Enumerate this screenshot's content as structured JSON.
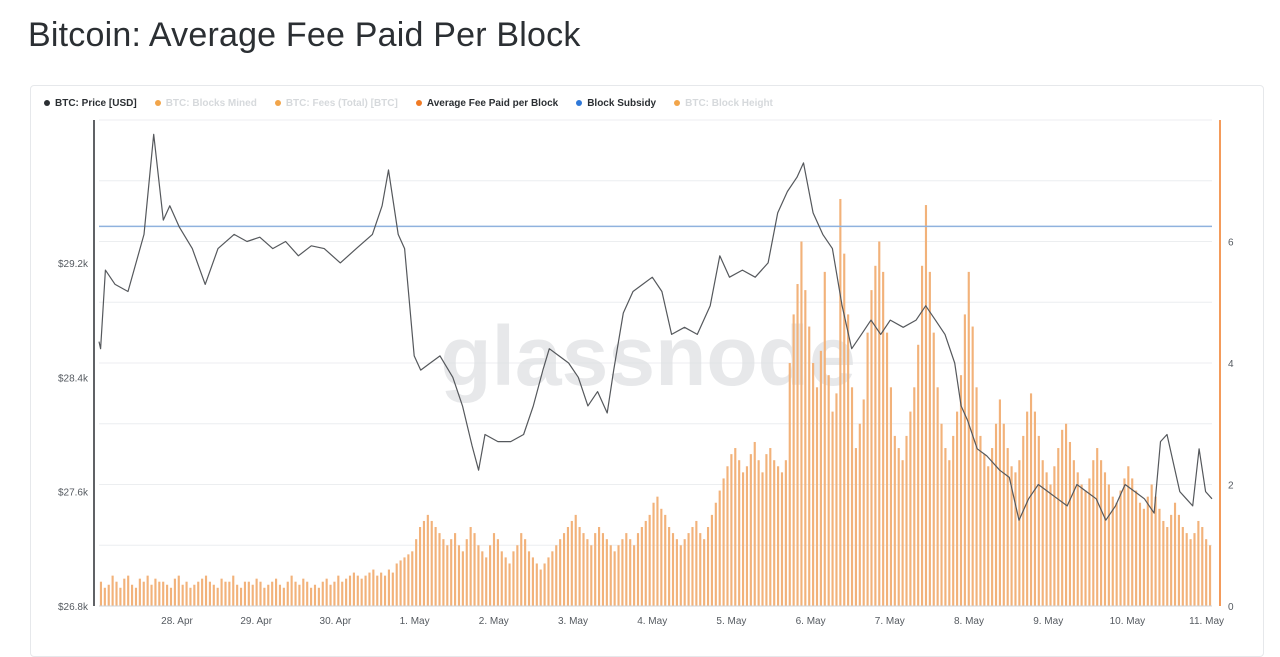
{
  "page": {
    "title": "Bitcoin: Average Fee Paid Per Block"
  },
  "legend": [
    {
      "label": "BTC: Price [USD]",
      "color": "#2b2f33",
      "active": true
    },
    {
      "label": "BTC: Blocks Mined",
      "color": "#f2a54a",
      "active": false
    },
    {
      "label": "BTC: Fees (Total) [BTC]",
      "color": "#f2a54a",
      "active": false
    },
    {
      "label": "Average Fee Paid per Block",
      "color": "#f07a24",
      "active": true
    },
    {
      "label": "Block Subsidy",
      "color": "#2f78d8",
      "active": true
    },
    {
      "label": "BTC: Block Height",
      "color": "#f2a54a",
      "active": false
    }
  ],
  "watermark": "glassnode",
  "chart_data": {
    "type": "line+bar",
    "x_axis": {
      "ticks": [
        "28. Apr",
        "29. Apr",
        "30. Apr",
        "1. May",
        "2. May",
        "3. May",
        "4. May",
        "5. May",
        "6. May",
        "7. May",
        "8. May",
        "9. May",
        "10. May",
        "11. May"
      ]
    },
    "y_left": {
      "ticks": [
        "$26.8k",
        "$27.6k",
        "$28.4k",
        "$29.2k"
      ],
      "range": [
        26800,
        30200
      ],
      "unit": "USD"
    },
    "y_right": {
      "ticks": [
        "0",
        "2",
        "4",
        "6"
      ],
      "range": [
        0,
        8
      ],
      "unit": "BTC"
    },
    "series": [
      {
        "name": "BTC: Price [USD]",
        "type": "line",
        "axis": "left",
        "color": "#55585c",
        "points": [
          [
            0,
            28650
          ],
          [
            0.05,
            28600
          ],
          [
            0.2,
            29150
          ],
          [
            0.5,
            29050
          ],
          [
            0.9,
            29000
          ],
          [
            1.4,
            29400
          ],
          [
            1.7,
            30100
          ],
          [
            2,
            29500
          ],
          [
            2.2,
            29600
          ],
          [
            2.5,
            29450
          ],
          [
            2.9,
            29300
          ],
          [
            3.3,
            29050
          ],
          [
            3.7,
            29300
          ],
          [
            4.2,
            29400
          ],
          [
            4.6,
            29350
          ],
          [
            5,
            29380
          ],
          [
            5.4,
            29300
          ],
          [
            5.8,
            29350
          ],
          [
            6.2,
            29250
          ],
          [
            6.6,
            29320
          ],
          [
            7,
            29300
          ],
          [
            7.5,
            29200
          ],
          [
            8,
            29300
          ],
          [
            8.5,
            29400
          ],
          [
            8.8,
            29600
          ],
          [
            9,
            29850
          ],
          [
            9.3,
            29400
          ],
          [
            9.5,
            29300
          ],
          [
            9.8,
            28550
          ],
          [
            10,
            28450
          ],
          [
            10.3,
            28500
          ],
          [
            10.6,
            28550
          ],
          [
            11,
            28400
          ],
          [
            11.3,
            28200
          ],
          [
            11.6,
            27920
          ],
          [
            11.8,
            27750
          ],
          [
            12,
            28000
          ],
          [
            12.4,
            27950
          ],
          [
            12.8,
            27950
          ],
          [
            13.2,
            28000
          ],
          [
            13.5,
            28200
          ],
          [
            13.8,
            28450
          ],
          [
            14,
            28600
          ],
          [
            14.3,
            28550
          ],
          [
            14.6,
            28500
          ],
          [
            14.9,
            28400
          ],
          [
            15.2,
            28200
          ],
          [
            15.5,
            28300
          ],
          [
            15.8,
            28150
          ],
          [
            16,
            28450
          ],
          [
            16.3,
            28850
          ],
          [
            16.6,
            29000
          ],
          [
            16.9,
            29050
          ],
          [
            17.2,
            29100
          ],
          [
            17.5,
            29000
          ],
          [
            17.8,
            28700
          ],
          [
            18.2,
            28750
          ],
          [
            18.6,
            28700
          ],
          [
            19,
            28900
          ],
          [
            19.3,
            29250
          ],
          [
            19.6,
            29100
          ],
          [
            20,
            29150
          ],
          [
            20.4,
            29100
          ],
          [
            20.8,
            29200
          ],
          [
            21.1,
            29550
          ],
          [
            21.4,
            29700
          ],
          [
            21.7,
            29800
          ],
          [
            21.9,
            29900
          ],
          [
            22.2,
            29550
          ],
          [
            22.5,
            29400
          ],
          [
            22.8,
            29300
          ],
          [
            23.1,
            28900
          ],
          [
            23.4,
            28600
          ],
          [
            23.7,
            28700
          ],
          [
            24,
            28800
          ],
          [
            24.3,
            28700
          ],
          [
            24.6,
            28800
          ],
          [
            25,
            28750
          ],
          [
            25.4,
            28800
          ],
          [
            25.7,
            28900
          ],
          [
            26,
            28800
          ],
          [
            26.3,
            28700
          ],
          [
            26.6,
            28500
          ],
          [
            26.8,
            28200
          ],
          [
            27,
            28100
          ],
          [
            27.3,
            27900
          ],
          [
            27.6,
            27850
          ],
          [
            28,
            27750
          ],
          [
            28.3,
            27700
          ],
          [
            28.6,
            27400
          ],
          [
            28.9,
            27550
          ],
          [
            29.2,
            27650
          ],
          [
            29.5,
            27600
          ],
          [
            29.8,
            27550
          ],
          [
            30.1,
            27500
          ],
          [
            30.4,
            27650
          ],
          [
            30.7,
            27600
          ],
          [
            31,
            27550
          ],
          [
            31.3,
            27400
          ],
          [
            31.6,
            27500
          ],
          [
            31.9,
            27650
          ],
          [
            32.2,
            27600
          ],
          [
            32.5,
            27550
          ],
          [
            32.8,
            27450
          ],
          [
            33,
            27950
          ],
          [
            33.2,
            28000
          ],
          [
            33.4,
            27800
          ],
          [
            33.6,
            27600
          ],
          [
            33.8,
            27550
          ],
          [
            34,
            27500
          ],
          [
            34.2,
            27900
          ],
          [
            34.4,
            27600
          ],
          [
            34.6,
            27550
          ]
        ]
      },
      {
        "name": "Block Subsidy",
        "type": "line",
        "axis": "right",
        "color": "#8fb2de",
        "value": 6.25
      },
      {
        "name": "Average Fee Paid per Block",
        "type": "bar",
        "axis": "right",
        "color": "#f2b27a",
        "x_range": [
          0,
          34.6
        ],
        "values": [
          0.4,
          0.3,
          0.35,
          0.5,
          0.4,
          0.3,
          0.45,
          0.5,
          0.35,
          0.3,
          0.45,
          0.4,
          0.5,
          0.35,
          0.45,
          0.4,
          0.4,
          0.35,
          0.3,
          0.45,
          0.5,
          0.35,
          0.4,
          0.3,
          0.35,
          0.4,
          0.45,
          0.5,
          0.4,
          0.35,
          0.3,
          0.45,
          0.4,
          0.4,
          0.5,
          0.35,
          0.3,
          0.4,
          0.4,
          0.35,
          0.45,
          0.4,
          0.3,
          0.35,
          0.4,
          0.45,
          0.35,
          0.3,
          0.4,
          0.5,
          0.4,
          0.35,
          0.45,
          0.4,
          0.3,
          0.35,
          0.3,
          0.4,
          0.45,
          0.35,
          0.4,
          0.5,
          0.4,
          0.45,
          0.5,
          0.55,
          0.5,
          0.45,
          0.5,
          0.55,
          0.6,
          0.5,
          0.55,
          0.5,
          0.6,
          0.55,
          0.7,
          0.75,
          0.8,
          0.85,
          0.9,
          1.1,
          1.3,
          1.4,
          1.5,
          1.4,
          1.3,
          1.2,
          1.1,
          1.0,
          1.1,
          1.2,
          1.0,
          0.9,
          1.1,
          1.3,
          1.2,
          1.0,
          0.9,
          0.8,
          1.0,
          1.2,
          1.1,
          0.9,
          0.8,
          0.7,
          0.9,
          1.0,
          1.2,
          1.1,
          0.9,
          0.8,
          0.7,
          0.6,
          0.7,
          0.8,
          0.9,
          1.0,
          1.1,
          1.2,
          1.3,
          1.4,
          1.5,
          1.3,
          1.2,
          1.1,
          1.0,
          1.2,
          1.3,
          1.2,
          1.1,
          1.0,
          0.9,
          1.0,
          1.1,
          1.2,
          1.1,
          1.0,
          1.2,
          1.3,
          1.4,
          1.5,
          1.7,
          1.8,
          1.6,
          1.5,
          1.3,
          1.2,
          1.1,
          1.0,
          1.1,
          1.2,
          1.3,
          1.4,
          1.2,
          1.1,
          1.3,
          1.5,
          1.7,
          1.9,
          2.1,
          2.3,
          2.5,
          2.6,
          2.4,
          2.2,
          2.3,
          2.5,
          2.7,
          2.4,
          2.2,
          2.5,
          2.6,
          2.4,
          2.3,
          2.2,
          2.4,
          4.0,
          4.8,
          5.3,
          6.0,
          5.2,
          4.6,
          4.0,
          3.6,
          4.2,
          5.5,
          3.8,
          3.2,
          3.5,
          6.7,
          5.8,
          4.8,
          3.6,
          2.6,
          3.0,
          3.4,
          4.5,
          5.2,
          5.6,
          6.0,
          5.5,
          4.5,
          3.6,
          2.8,
          2.6,
          2.4,
          2.8,
          3.2,
          3.6,
          4.3,
          5.6,
          6.6,
          5.5,
          4.5,
          3.6,
          3.0,
          2.6,
          2.4,
          2.8,
          3.2,
          3.8,
          4.8,
          5.5,
          4.6,
          3.6,
          2.8,
          2.5,
          2.3,
          2.6,
          3.0,
          3.4,
          3.0,
          2.6,
          2.3,
          2.2,
          2.4,
          2.8,
          3.2,
          3.5,
          3.2,
          2.8,
          2.4,
          2.2,
          2.0,
          2.3,
          2.6,
          2.9,
          3.0,
          2.7,
          2.4,
          2.2,
          2.0,
          1.9,
          2.1,
          2.4,
          2.6,
          2.4,
          2.2,
          2.0,
          1.8,
          1.7,
          1.9,
          2.1,
          2.3,
          2.1,
          1.9,
          1.7,
          1.6,
          1.8,
          2.0,
          1.8,
          1.6,
          1.4,
          1.3,
          1.5,
          1.7,
          1.5,
          1.3,
          1.2,
          1.1,
          1.2,
          1.4,
          1.3,
          1.1,
          1.0
        ]
      }
    ]
  }
}
